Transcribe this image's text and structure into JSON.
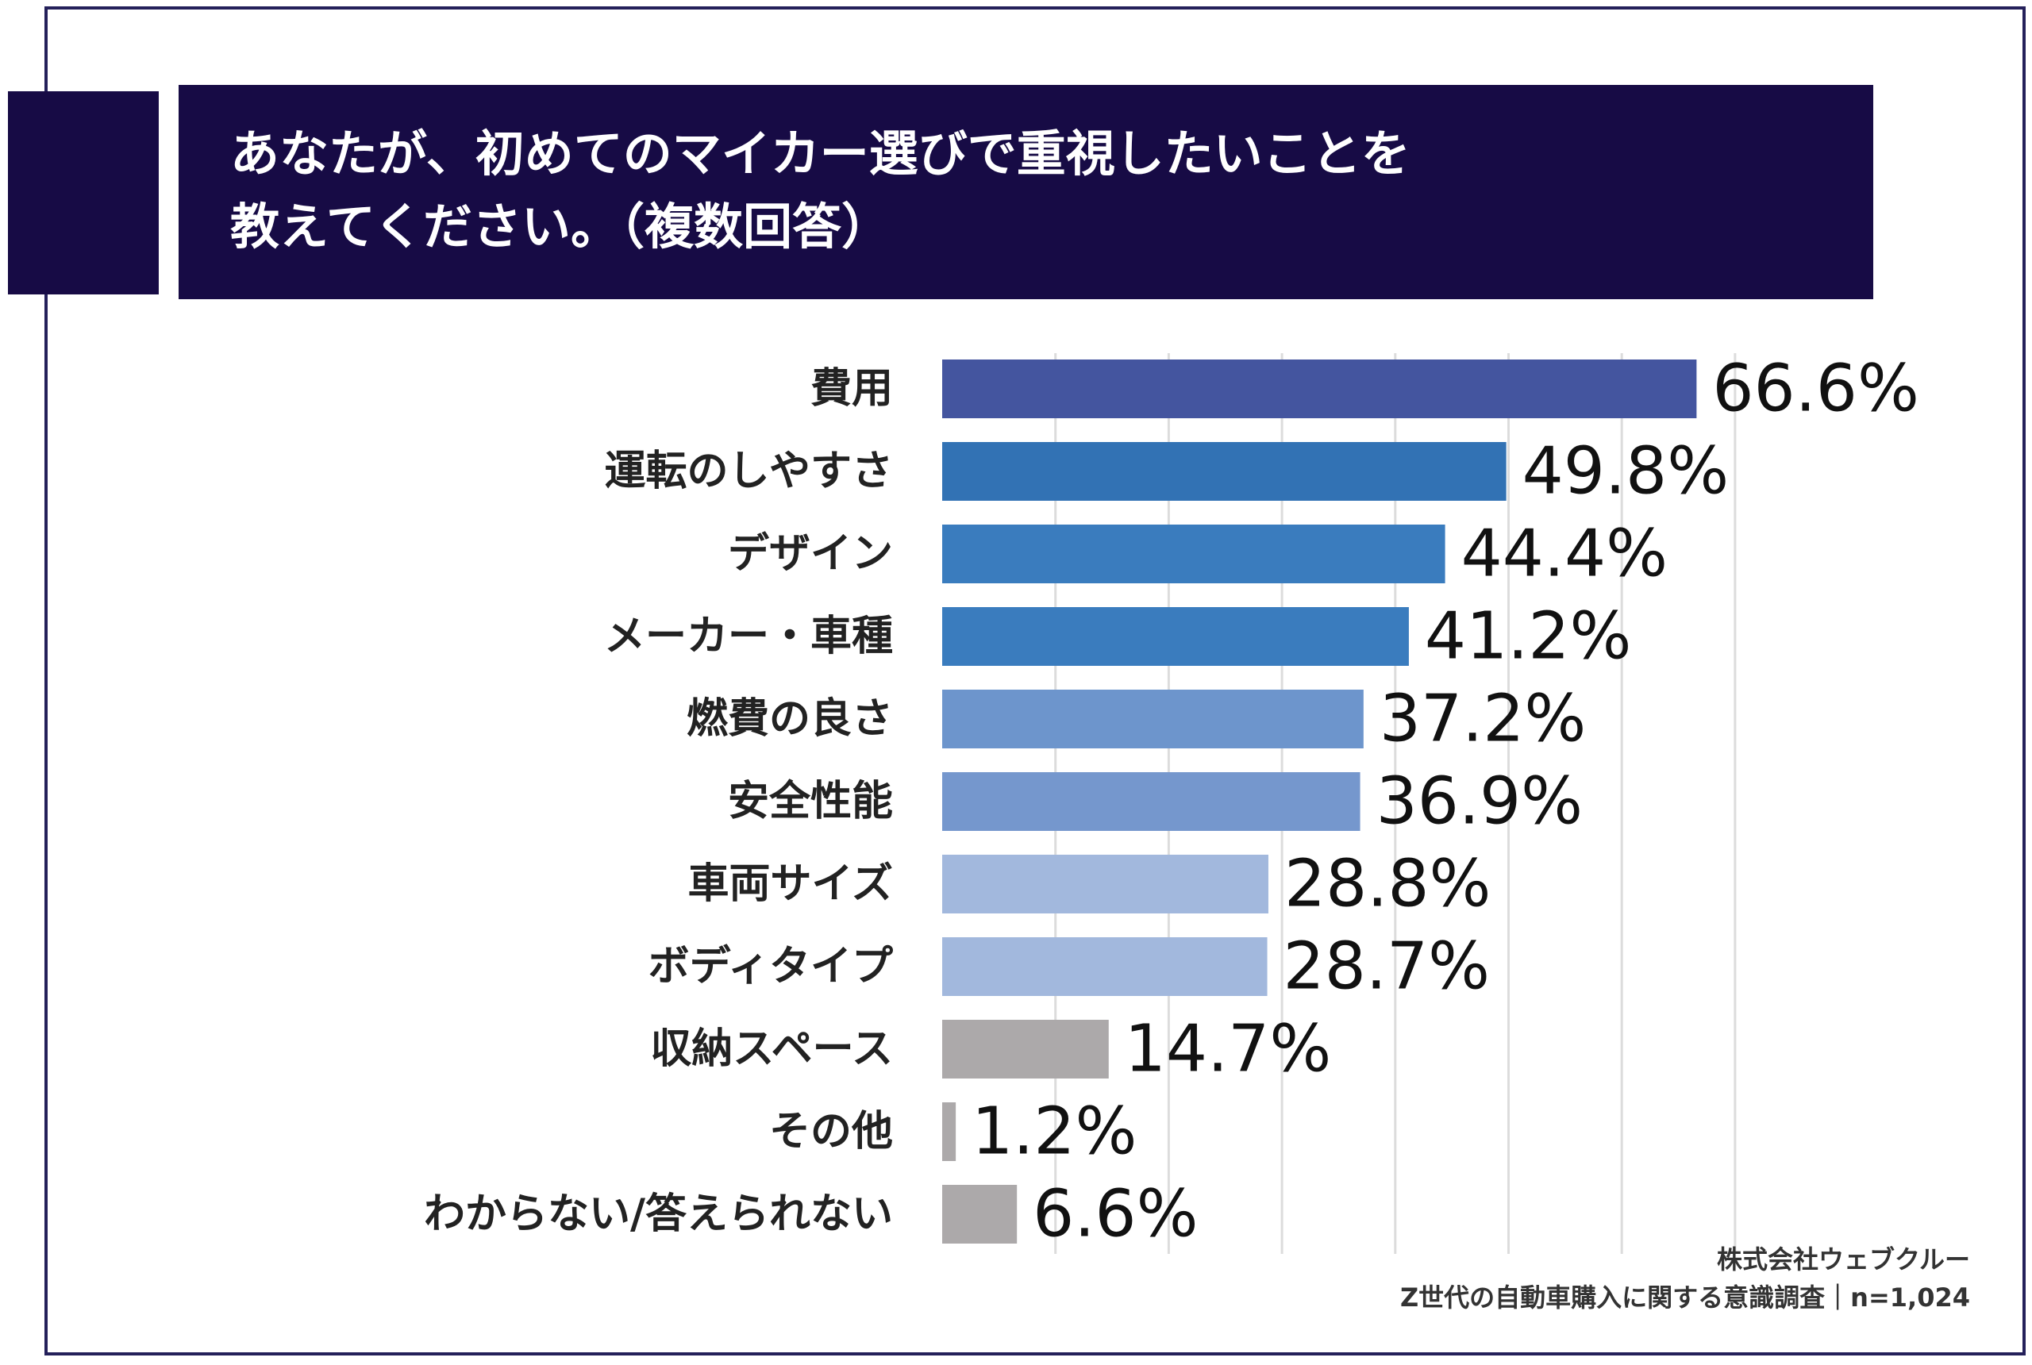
{
  "title": {
    "line1": "あなたが、初めてのマイカー選びで重視したいことを",
    "line2": "教えてください。（複数回答）"
  },
  "source": {
    "line1": "株式会社ウェブクルー",
    "line2": "Z世代の自動車購入に関する意識調査｜n=1,024"
  },
  "chart_data": {
    "type": "bar",
    "orientation": "horizontal",
    "categories": [
      "費用",
      "運転のしやすさ",
      "デザイン",
      "メーカー・車種",
      "燃費の良さ",
      "安全性能",
      "車両サイズ",
      "ボディタイプ",
      "収納スペース",
      "その他",
      "わからない/答えられない"
    ],
    "values": [
      66.6,
      49.8,
      44.4,
      41.2,
      37.2,
      36.9,
      28.8,
      28.7,
      14.7,
      1.2,
      6.6
    ],
    "value_labels": [
      "66.6%",
      "49.8%",
      "44.4%",
      "41.2%",
      "37.2%",
      "36.9%",
      "28.8%",
      "28.7%",
      "14.7%",
      "1.2%",
      "6.6%"
    ],
    "bar_colors": [
      "#44559f",
      "#3272b4",
      "#3a7cbe",
      "#3a7cbe",
      "#6d95cc",
      "#7597cd",
      "#a2b8dd",
      "#a2b8dd",
      "#aca9aa",
      "#aca9aa",
      "#aca9aa"
    ],
    "xlim": [
      0,
      70
    ],
    "grid": true,
    "legend": "none"
  }
}
